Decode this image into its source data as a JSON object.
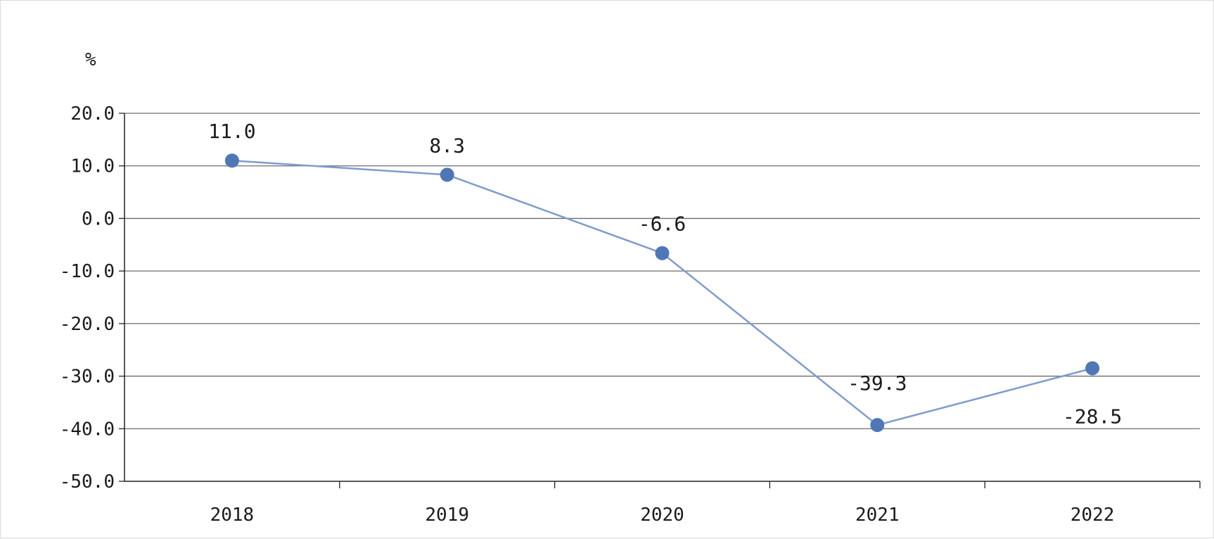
{
  "chart_data": {
    "type": "line",
    "unit_label": "%",
    "categories": [
      "2018",
      "2019",
      "2020",
      "2021",
      "2022"
    ],
    "series": [
      {
        "values": [
          11.0,
          8.3,
          -6.6,
          -39.3,
          -28.5
        ],
        "data_labels": [
          "11.0",
          "8.3",
          "-6.6",
          "-39.3",
          "-28.5"
        ],
        "color": "#4f77b5",
        "line_color": "#7f9ccc"
      }
    ],
    "y_ticks": [
      "20.0",
      "10.0",
      "0.0",
      "-10.0",
      "-20.0",
      "-30.0",
      "-40.0",
      "-50.0"
    ],
    "ylim": [
      -50,
      20
    ],
    "grid": true,
    "legend": "none"
  }
}
